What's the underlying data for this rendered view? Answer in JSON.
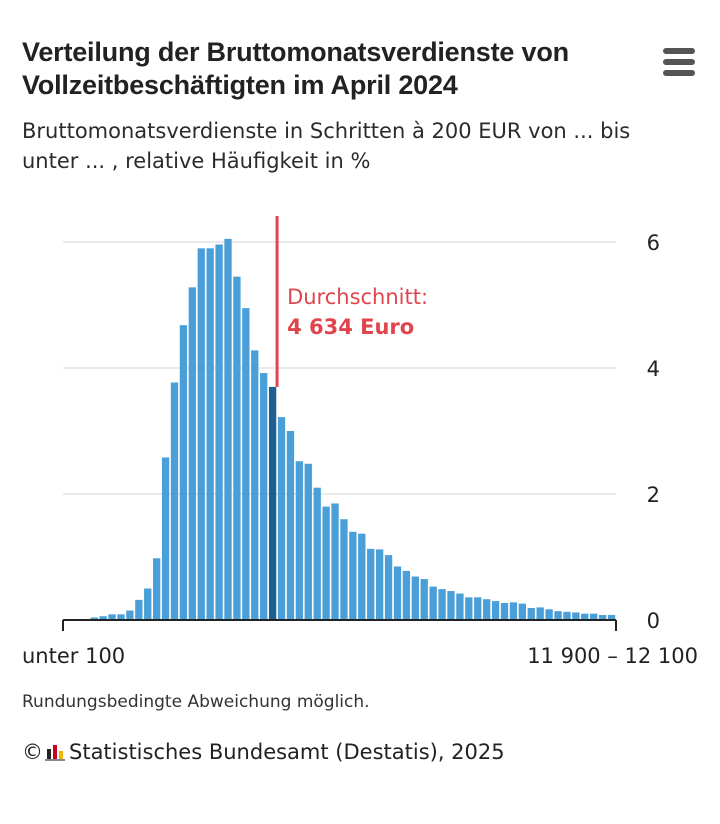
{
  "header": {
    "title": "Verteilung der Bruttomonatsverdienste von Vollzeitbeschäftigten im April 2024",
    "subtitle": "Bruttomonatsverdienste in Schritten à 200 EUR von ... bis unter ... , relative Häufigkeit in %",
    "menu_icon": "hamburger-menu-icon"
  },
  "chart_data": {
    "type": "bar",
    "title": "Verteilung der Bruttomonatsverdienste von Vollzeitbeschäftigten im April 2024",
    "subtitle": "Bruttomonatsverdienste in Schritten à 200 EUR von ... bis unter ... , relative Häufigkeit in %",
    "x_first_label": "unter 100",
    "x_last_label": "11 900 – 12 100",
    "ylim": [
      0,
      6
    ],
    "y_ticks": [
      "0",
      "2",
      "4",
      "6"
    ],
    "grid": true,
    "values": [
      0.0,
      0.0,
      0.0,
      0.04,
      0.06,
      0.09,
      0.09,
      0.15,
      0.32,
      0.5,
      0.98,
      2.58,
      3.77,
      4.68,
      5.28,
      5.9,
      5.9,
      5.96,
      6.05,
      5.45,
      4.95,
      4.28,
      3.92,
      3.7,
      3.22,
      3.0,
      2.52,
      2.48,
      2.1,
      1.8,
      1.85,
      1.6,
      1.4,
      1.37,
      1.13,
      1.12,
      1.03,
      0.85,
      0.78,
      0.69,
      0.65,
      0.53,
      0.49,
      0.46,
      0.42,
      0.36,
      0.36,
      0.33,
      0.3,
      0.27,
      0.28,
      0.26,
      0.19,
      0.2,
      0.17,
      0.14,
      0.13,
      0.12,
      0.1,
      0.1,
      0.08,
      0.08
    ],
    "highlight_index": 23,
    "average_label": "Durchschnitt:",
    "average_value": "4 634 Euro",
    "bar_color": "#4a9fd8",
    "highlight_color": "#1f5f8f",
    "average_color": "#e0454d"
  },
  "footer": {
    "note": "Rundungsbedingte Abweichung möglich.",
    "copyright": "©",
    "source": "Statistisches Bundesamt (Destatis), 2025"
  }
}
